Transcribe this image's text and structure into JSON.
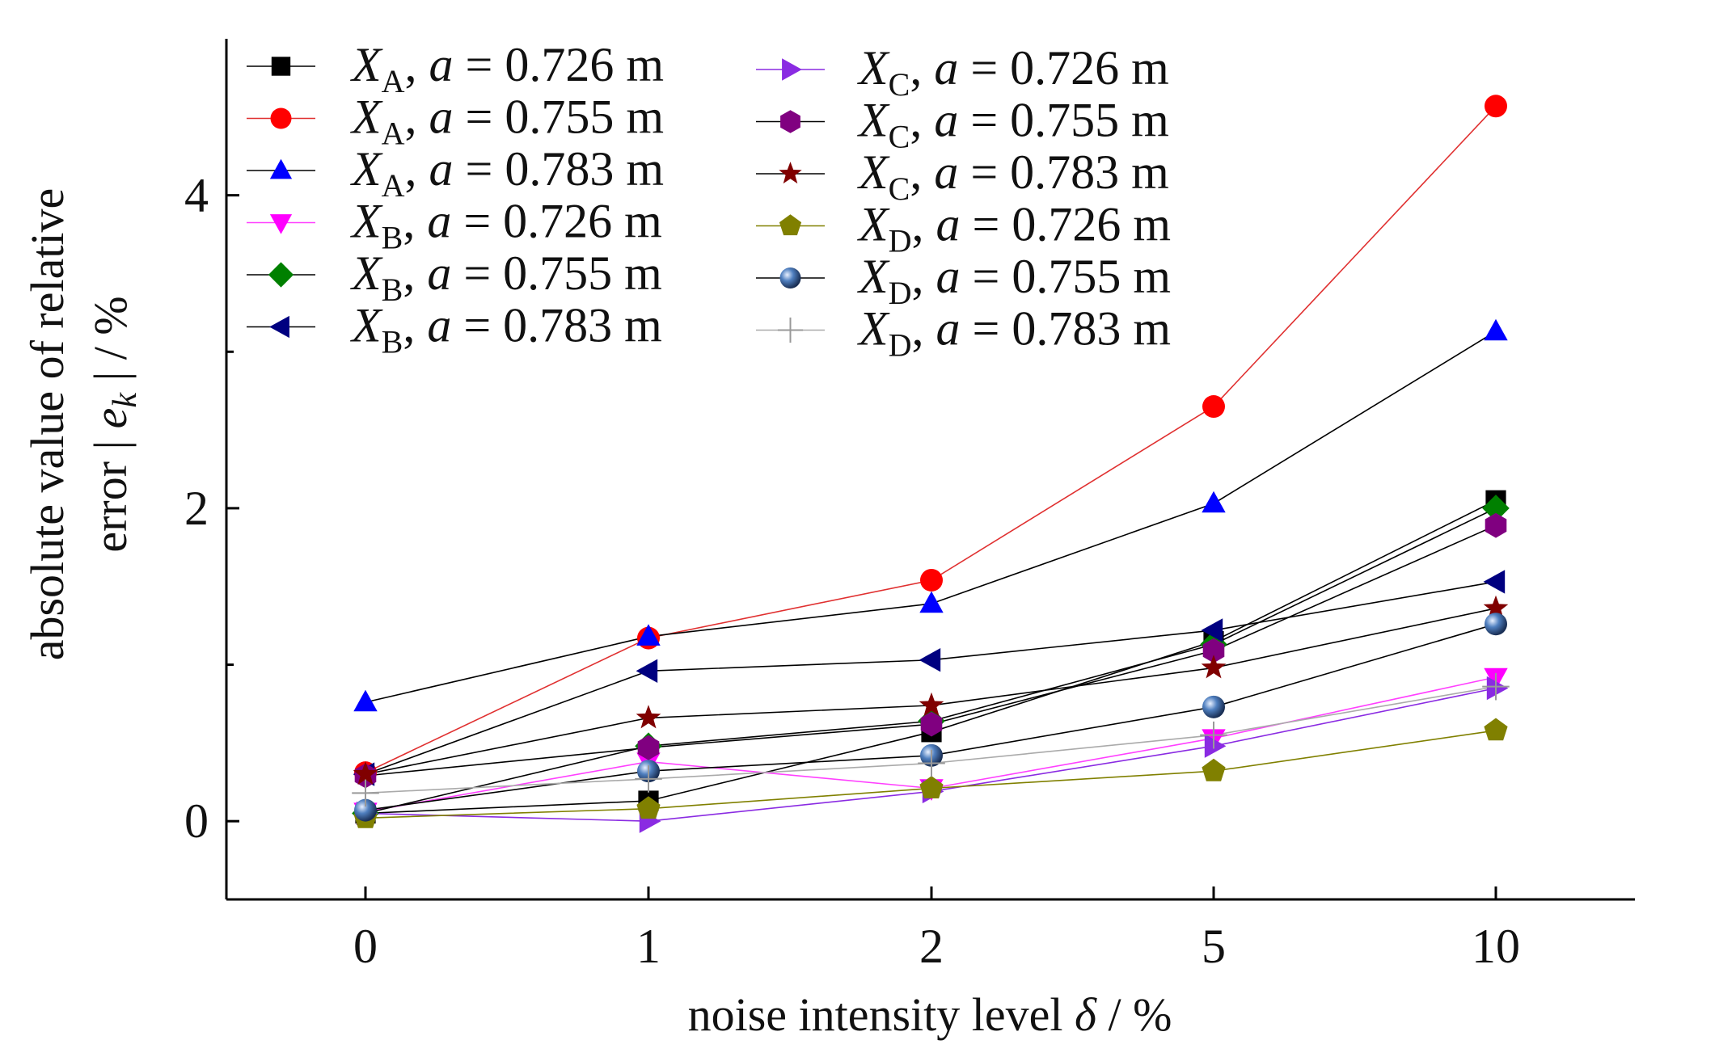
{
  "chart_data": {
    "type": "line",
    "categories": [
      "0",
      "1",
      "2",
      "5",
      "10"
    ],
    "xlabel": {
      "text": "noise intensity level ",
      "symbol": "δ",
      "unit": " / %"
    },
    "ylabel": {
      "line1": "absolute value of relative",
      "line2_prefix": "error | ",
      "line2_symbol": "e",
      "line2_sub": "k",
      "line2_suffix": " | / %"
    },
    "ylim": [
      -0.5,
      5.0
    ],
    "yticks": [
      0,
      2,
      4
    ],
    "grid": false,
    "legend_position": "top-left",
    "series": [
      {
        "var": "X",
        "sub": "A",
        "a": "0.726",
        "marker": "square",
        "color": "#000000",
        "line": "#000000",
        "values": [
          0.05,
          0.13,
          0.57,
          1.15,
          2.05
        ]
      },
      {
        "var": "X",
        "sub": "A",
        "a": "0.755",
        "marker": "circle",
        "color": "#ff0000",
        "line": "#e03030",
        "values": [
          0.31,
          1.17,
          1.54,
          2.65,
          4.57
        ]
      },
      {
        "var": "X",
        "sub": "A",
        "a": "0.783",
        "marker": "triangle-up",
        "color": "#0000ff",
        "line": "#000000",
        "values": [
          0.76,
          1.18,
          1.39,
          2.03,
          3.13
        ]
      },
      {
        "var": "X",
        "sub": "B",
        "a": "0.726",
        "marker": "triangle-down",
        "color": "#ff00ff",
        "line": "#ff40ff",
        "values": [
          0.06,
          0.38,
          0.21,
          0.53,
          0.92
        ]
      },
      {
        "var": "X",
        "sub": "B",
        "a": "0.755",
        "marker": "diamond",
        "color": "#008000",
        "line": "#000000",
        "values": [
          0.05,
          0.48,
          0.64,
          1.13,
          2.0
        ]
      },
      {
        "var": "X",
        "sub": "B",
        "a": "0.783",
        "marker": "triangle-left",
        "color": "#000080",
        "line": "#000000",
        "values": [
          0.3,
          0.96,
          1.03,
          1.22,
          1.53
        ]
      },
      {
        "var": "X",
        "sub": "C",
        "a": "0.726",
        "marker": "triangle-right",
        "color": "#8a2be2",
        "line": "#8a2be2",
        "values": [
          0.05,
          0.0,
          0.19,
          0.48,
          0.85
        ]
      },
      {
        "var": "X",
        "sub": "C",
        "a": "0.755",
        "marker": "hexagon",
        "color": "#800080",
        "line": "#000000",
        "values": [
          0.29,
          0.47,
          0.62,
          1.09,
          1.89
        ]
      },
      {
        "var": "X",
        "sub": "C",
        "a": "0.783",
        "marker": "star",
        "color": "#800000",
        "line": "#000000",
        "values": [
          0.3,
          0.66,
          0.74,
          0.98,
          1.36
        ]
      },
      {
        "var": "X",
        "sub": "D",
        "a": "0.726",
        "marker": "pentagon",
        "color": "#808000",
        "line": "#808000",
        "values": [
          0.02,
          0.08,
          0.21,
          0.32,
          0.58
        ]
      },
      {
        "var": "X",
        "sub": "D",
        "a": "0.755",
        "marker": "sphere",
        "color": "#3a6ea5",
        "line": "#000000",
        "values": [
          0.07,
          0.32,
          0.42,
          0.73,
          1.26
        ]
      },
      {
        "var": "X",
        "sub": "D",
        "a": "0.783",
        "marker": "plus",
        "color": "#999999",
        "line": "#aaaaaa",
        "values": [
          0.18,
          0.27,
          0.37,
          0.55,
          0.86
        ]
      }
    ],
    "legend_text": {
      "a_symbol": "a",
      "equals": " = ",
      "unit": " m",
      "comma": ", "
    }
  }
}
